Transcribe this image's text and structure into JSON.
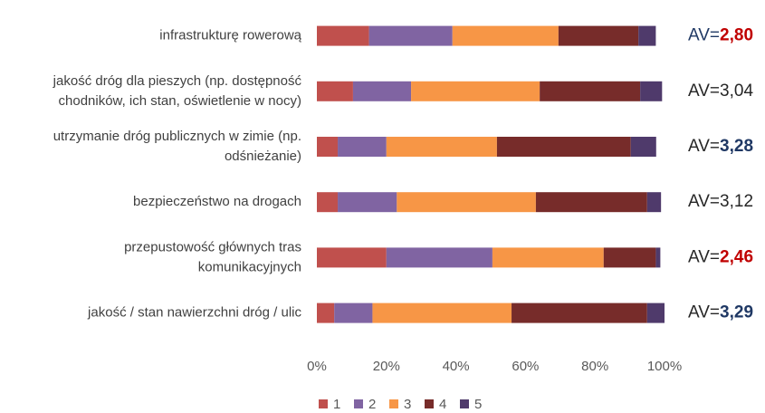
{
  "chart_data": {
    "type": "stacked-bar-horizontal",
    "categories": [
      [
        "infrastrukturę rowerową"
      ],
      [
        "jakość dróg dla pieszych (np. dostępność",
        "chodników, ich stan, oświetlenie w nocy)"
      ],
      [
        "utrzymanie dróg publicznych w zimie (np.",
        "odśnieżanie)"
      ],
      [
        "bezpieczeństwo na drogach"
      ],
      [
        "przepustowość głównych tras",
        "komunikacyjnych"
      ],
      [
        "jakość / stan nawierzchni dróg / ulic"
      ]
    ],
    "series": [
      {
        "name": "1",
        "color": "#c0504d",
        "values": [
          15,
          10.4,
          6,
          6,
          20,
          5
        ]
      },
      {
        "name": "2",
        "color": "#8064a2",
        "values": [
          24,
          16.7,
          14,
          17,
          30.5,
          11
        ]
      },
      {
        "name": "3",
        "color": "#f79646",
        "values": [
          30.5,
          37,
          31.8,
          40,
          32,
          40
        ]
      },
      {
        "name": "4",
        "color": "#772c2a",
        "values": [
          23,
          28.9,
          38.5,
          32,
          15,
          39
        ]
      },
      {
        "name": "5",
        "color": "#4f3a6b",
        "values": [
          5,
          6.3,
          7.3,
          4,
          1.3,
          5
        ]
      }
    ],
    "annotations": [
      {
        "prefix": "AV=",
        "text": "2,80",
        "bold": true,
        "prefix_color": "#1f3864",
        "color": "#c00000"
      },
      {
        "prefix": "AV=",
        "text": "3,04",
        "bold": false,
        "prefix_color": "#262626",
        "color": "#262626"
      },
      {
        "prefix": "AV=",
        "text": "3,28",
        "bold": true,
        "prefix_color": "#262626",
        "color": "#1f3864"
      },
      {
        "prefix": "AV=",
        "text": "3,12",
        "bold": false,
        "prefix_color": "#262626",
        "color": "#262626"
      },
      {
        "prefix": "AV=",
        "text": "2,46",
        "bold": true,
        "prefix_color": "#262626",
        "color": "#c00000"
      },
      {
        "prefix": "AV=",
        "text": "3,29",
        "bold": true,
        "prefix_color": "#262626",
        "color": "#1f3864"
      }
    ],
    "xlim": [
      0,
      100
    ],
    "xticks": [
      {
        "value": 0,
        "label": "0%"
      },
      {
        "value": 20,
        "label": "20%"
      },
      {
        "value": 40,
        "label": "40%"
      },
      {
        "value": 60,
        "label": "60%"
      },
      {
        "value": 80,
        "label": "80%"
      },
      {
        "value": 100,
        "label": "100%"
      }
    ],
    "grid": false,
    "legend": "bottom"
  }
}
